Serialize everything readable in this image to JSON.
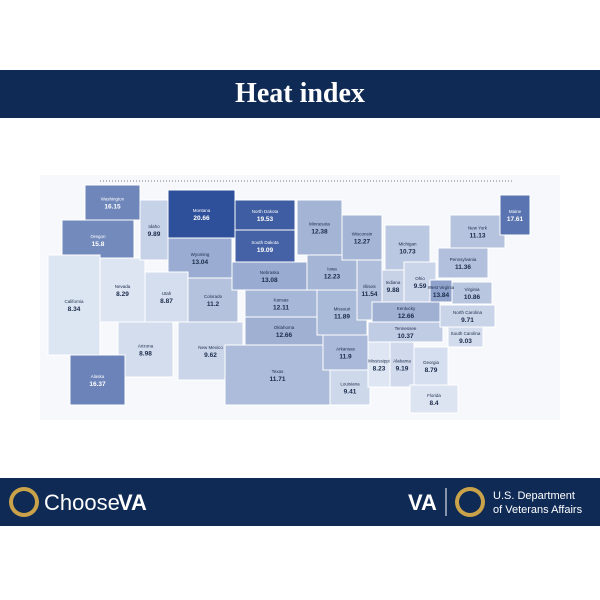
{
  "header": {
    "title": "Heat index"
  },
  "map": {
    "states": [
      {
        "name": "Washington",
        "value": 16.15
      },
      {
        "name": "Oregon",
        "value": 15.8
      },
      {
        "name": "California",
        "value": 8.34
      },
      {
        "name": "Nevada",
        "value": 8.29
      },
      {
        "name": "Idaho",
        "value": 9.89
      },
      {
        "name": "Montana",
        "value": 20.66
      },
      {
        "name": "Wyoming",
        "value": 13.04
      },
      {
        "name": "Utah",
        "value": 8.87
      },
      {
        "name": "Arizona",
        "value": 8.98
      },
      {
        "name": "Colorado",
        "value": 11.2
      },
      {
        "name": "New Mexico",
        "value": 9.62
      },
      {
        "name": "North Dakota",
        "value": 19.53
      },
      {
        "name": "South Dakota",
        "value": 19.09
      },
      {
        "name": "Nebraska",
        "value": 13.08
      },
      {
        "name": "Kansas",
        "value": 12.11
      },
      {
        "name": "Oklahoma",
        "value": 12.66
      },
      {
        "name": "Texas",
        "value": 11.71
      },
      {
        "name": "Minnesota",
        "value": 12.38
      },
      {
        "name": "Iowa",
        "value": 12.23
      },
      {
        "name": "Missouri",
        "value": 11.89
      },
      {
        "name": "Arkansas",
        "value": 11.9
      },
      {
        "name": "Louisiana",
        "value": 9.41
      },
      {
        "name": "Wisconsin",
        "value": 12.27
      },
      {
        "name": "Illinois",
        "value": 11.54
      },
      {
        "name": "Michigan",
        "value": 10.73
      },
      {
        "name": "Indiana",
        "value": 9.88
      },
      {
        "name": "Ohio",
        "value": 9.59
      },
      {
        "name": "Kentucky",
        "value": 12.66
      },
      {
        "name": "Tennessee",
        "value": 10.37
      },
      {
        "name": "Mississippi",
        "value": 8.23
      },
      {
        "name": "Alabama",
        "value": 9.19
      },
      {
        "name": "Georgia",
        "value": 8.79
      },
      {
        "name": "Florida",
        "value": 8.4
      },
      {
        "name": "South Carolina",
        "value": 9.03
      },
      {
        "name": "North Carolina",
        "value": 9.71
      },
      {
        "name": "Virginia",
        "value": 10.86
      },
      {
        "name": "West Virginia",
        "value": 13.84
      },
      {
        "name": "Pennsylvania",
        "value": 11.36
      },
      {
        "name": "New York",
        "value": 11.13
      },
      {
        "name": "Maine",
        "value": 17.61
      },
      {
        "name": "Alaska",
        "value": 16.37
      }
    ]
  },
  "footer": {
    "brand": "Choose",
    "brand_mark": "VA",
    "agency_short": "VA",
    "agency_line1": "U.S. Department",
    "agency_line2": "of Veterans Affairs"
  }
}
